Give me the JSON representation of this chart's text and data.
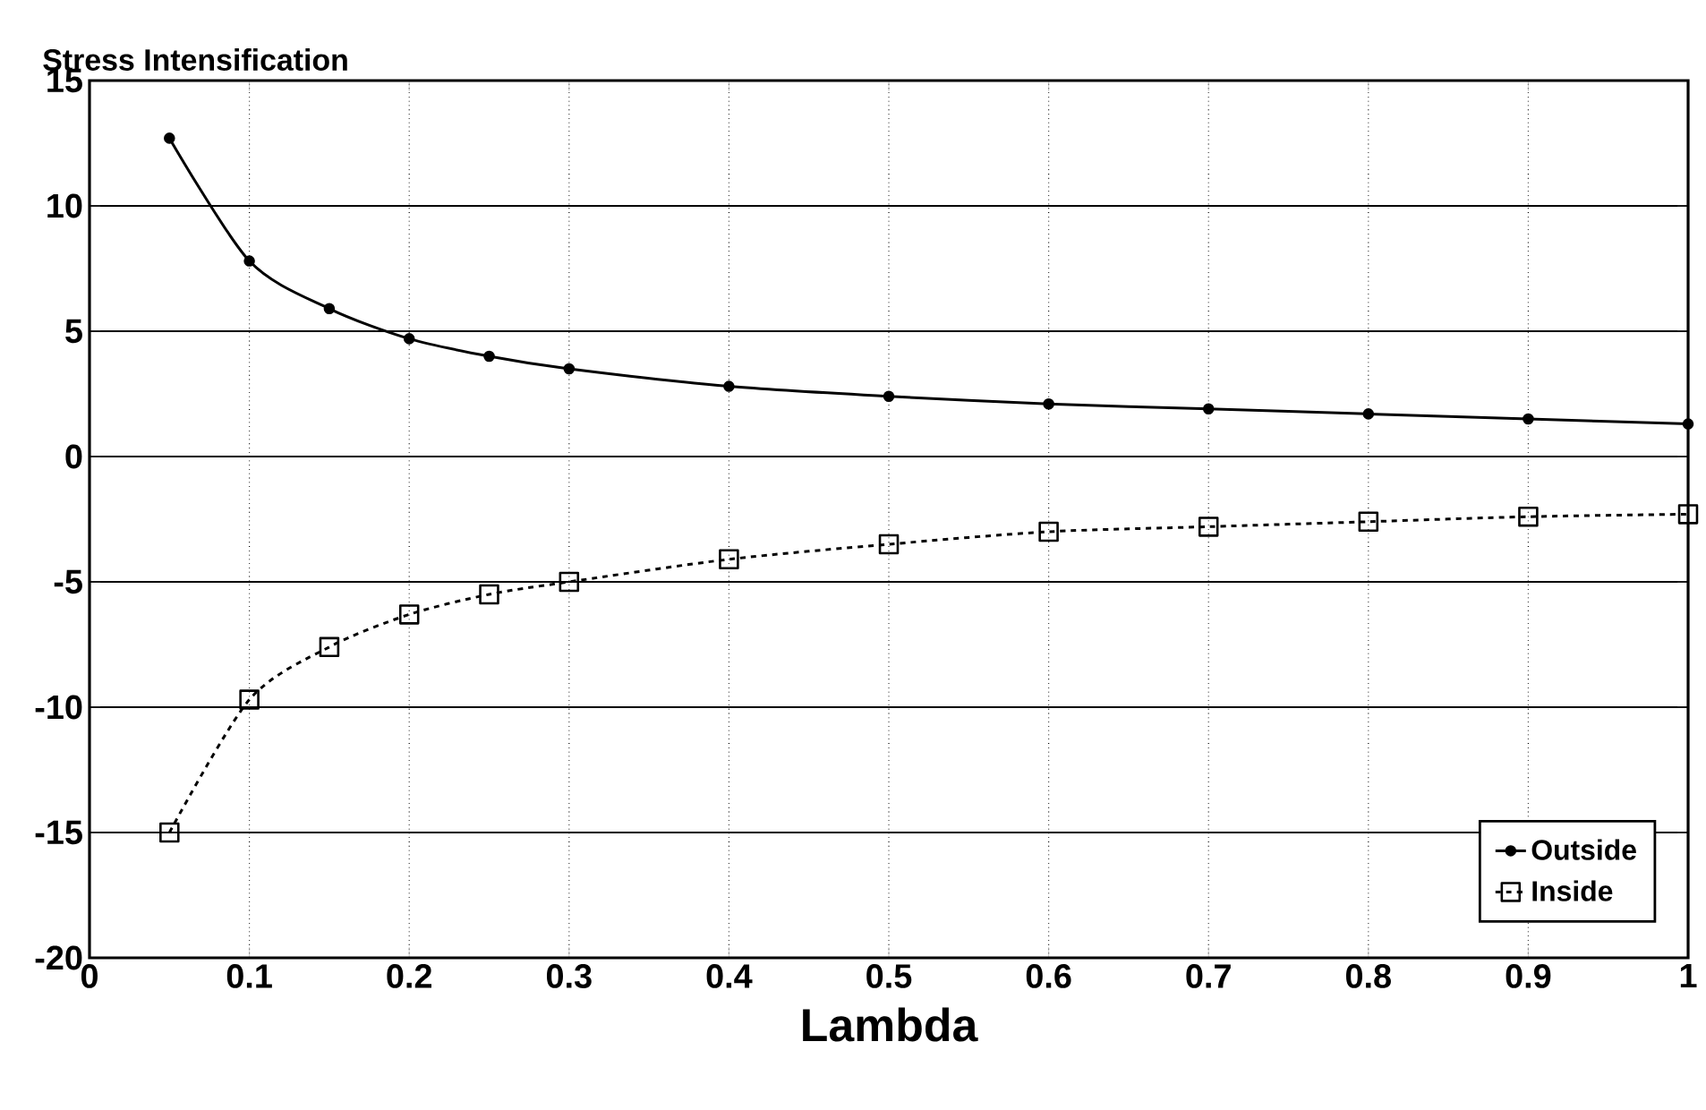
{
  "chart_data": {
    "type": "line",
    "ylabel": "Stress Intensification",
    "xlabel": "Lambda",
    "x": [
      0.05,
      0.1,
      0.15,
      0.2,
      0.25,
      0.3,
      0.4,
      0.5,
      0.6,
      0.7,
      0.8,
      0.9,
      1.0
    ],
    "series": [
      {
        "name": "Outside",
        "color": "#000000",
        "marker": "circle",
        "line_style": "solid",
        "values": [
          12.7,
          7.8,
          5.9,
          4.7,
          4.0,
          3.5,
          2.8,
          2.4,
          2.1,
          1.9,
          1.7,
          1.5,
          1.3
        ]
      },
      {
        "name": "Inside",
        "color": "#000000",
        "marker": "square",
        "line_style": "dashed",
        "values": [
          -15.0,
          -9.7,
          -7.6,
          -6.3,
          -5.5,
          -5.0,
          -4.1,
          -3.5,
          -3.0,
          -2.8,
          -2.6,
          -2.4,
          -2.3
        ]
      }
    ],
    "xlim": [
      0,
      1
    ],
    "ylim": [
      -20,
      15
    ],
    "xticks": [
      0,
      0.1,
      0.2,
      0.3,
      0.4,
      0.5,
      0.6,
      0.7,
      0.8,
      0.9,
      1
    ],
    "yticks": [
      -20,
      -15,
      -10,
      -5,
      0,
      5,
      10,
      15
    ],
    "grid": true,
    "legend": "bottom right"
  }
}
